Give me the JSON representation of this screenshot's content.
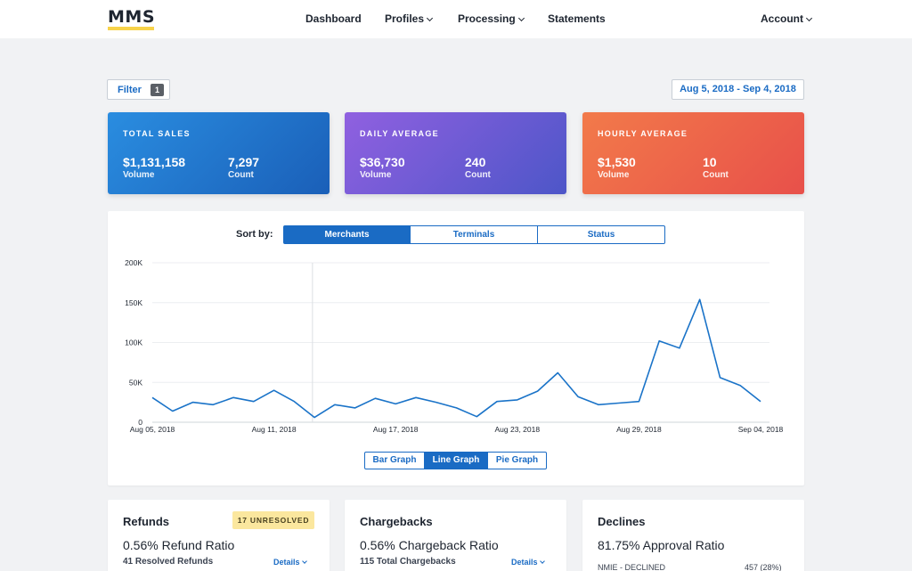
{
  "nav": {
    "logo": "MMS",
    "items": [
      "Dashboard",
      "Profiles",
      "Processing",
      "Statements"
    ],
    "account": "Account"
  },
  "toolbar": {
    "filter_label": "Filter",
    "filter_count": "1",
    "date_range": "Aug 5, 2018 - Sep 4, 2018"
  },
  "stats": [
    {
      "title": "TOTAL SALES",
      "volume": "$1,131,158",
      "volume_label": "Volume",
      "count": "7,297",
      "count_label": "Count",
      "color": "#2a8de0"
    },
    {
      "title": "DAILY AVERAGE",
      "volume": "$36,730",
      "volume_label": "Volume",
      "count": "240",
      "count_label": "Count",
      "color": "#7a5ad8"
    },
    {
      "title": "HOURLY AVERAGE",
      "volume": "$1,530",
      "volume_label": "Volume",
      "count": "10",
      "count_label": "Count",
      "color": "#ee6a4a"
    }
  ],
  "sort": {
    "label": "Sort by:",
    "options": [
      "Merchants",
      "Terminals",
      "Status"
    ],
    "active": "Merchants"
  },
  "views": {
    "options": [
      "Bar Graph",
      "Line Graph",
      "Pie Graph"
    ],
    "active": "Line Graph"
  },
  "chart_data": {
    "type": "line",
    "x": [
      "Aug 05, 2018",
      "Aug 06",
      "Aug 07",
      "Aug 08",
      "Aug 09",
      "Aug 10",
      "Aug 11, 2018",
      "Aug 12",
      "Aug 13",
      "Aug 14",
      "Aug 15",
      "Aug 16",
      "Aug 17, 2018",
      "Aug 18",
      "Aug 19",
      "Aug 20",
      "Aug 21",
      "Aug 22",
      "Aug 23, 2018",
      "Aug 24",
      "Aug 25",
      "Aug 26",
      "Aug 27",
      "Aug 28",
      "Aug 29, 2018",
      "Aug 30",
      "Aug 31",
      "Sep 01",
      "Sep 02",
      "Sep 03",
      "Sep 04, 2018"
    ],
    "values": [
      31000,
      14000,
      25000,
      22000,
      31000,
      26000,
      40000,
      26000,
      6000,
      22000,
      18000,
      30000,
      23000,
      31000,
      25000,
      18000,
      7000,
      26000,
      28000,
      39000,
      62000,
      32000,
      22000,
      24000,
      26000,
      102000,
      93000,
      154000,
      56000,
      46000,
      26000
    ],
    "tick_labels": [
      "Aug 05, 2018",
      "Aug 11, 2018",
      "Aug 17, 2018",
      "Aug 23, 2018",
      "Aug 29, 2018",
      "Sep 04, 2018"
    ],
    "y_ticks": [
      "0",
      "50K",
      "100K",
      "150K",
      "200K"
    ],
    "ylim": [
      0,
      200000
    ],
    "grid": true,
    "line_color": "#1a73c8"
  },
  "refunds": {
    "title": "Refunds",
    "badge": "17 UNRESOLVED",
    "ratio": "0.56% Refund Ratio",
    "sub": "41 Resolved Refunds",
    "details": "Details"
  },
  "chargebacks": {
    "title": "Chargebacks",
    "ratio": "0.56% Chargeback Ratio",
    "sub": "115 Total Chargebacks",
    "details": "Details"
  },
  "declines": {
    "title": "Declines",
    "ratio": "81.75% Approval Ratio",
    "row_label": "NMIE - DECLINED",
    "row_value": "457 (28%)"
  }
}
